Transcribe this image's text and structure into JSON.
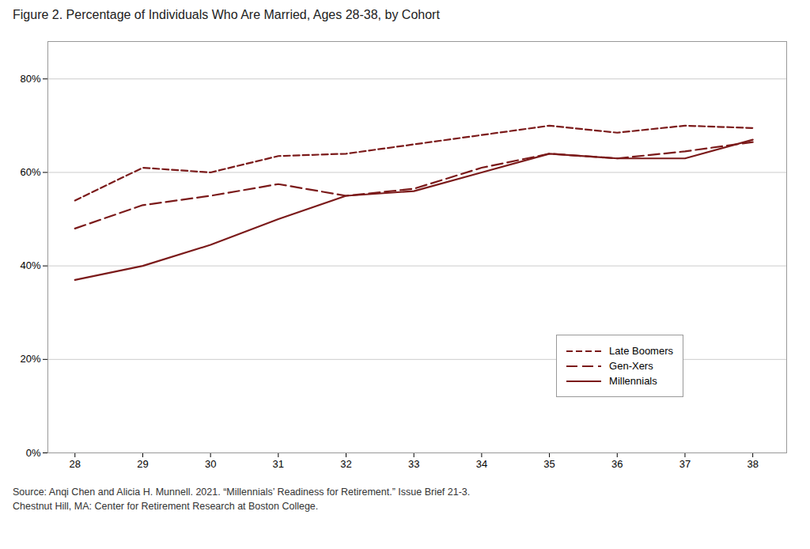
{
  "chart_data": {
    "type": "line",
    "title": "Figure 2. Percentage of Individuals Who Are Married, Ages 28-38, by Cohort",
    "caption": [
      "Source: Anqi Chen and Alicia H. Munnell. 2021. “Millennials’ Readiness for Retirement.” Issue Brief 21-3.",
      "Chestnut Hill, MA: Center for Retirement Research at Boston College."
    ],
    "x": [
      28,
      29,
      30,
      31,
      32,
      33,
      34,
      35,
      36,
      37,
      38
    ],
    "series": [
      {
        "name": "Late Boomers",
        "color": "#7B1A1A",
        "line_style": "dashed",
        "values": [
          0.54,
          0.61,
          0.6,
          0.635,
          0.64,
          0.66,
          0.68,
          0.7,
          0.685,
          0.7,
          0.695
        ]
      },
      {
        "name": "Gen-Xers",
        "color": "#7B1A1A",
        "line_style": "longdashed",
        "values": [
          0.48,
          0.53,
          0.55,
          0.575,
          0.55,
          0.565,
          0.61,
          0.64,
          0.63,
          0.645,
          0.665
        ]
      },
      {
        "name": "Millennials",
        "color": "#7B1A1A",
        "line_style": "solid",
        "values": [
          0.37,
          0.4,
          0.445,
          0.5,
          0.55,
          0.56,
          0.6,
          0.64,
          0.63,
          0.63,
          0.67
        ]
      }
    ],
    "xlim": [
      27.6,
      38.5
    ],
    "xticks": [
      28,
      29,
      30,
      31,
      32,
      33,
      34,
      35,
      36,
      37,
      38
    ],
    "ylim": [
      0.0,
      0.88
    ],
    "yticks": [
      {
        "value": 0.0,
        "label": "0%"
      },
      {
        "value": 0.2,
        "label": "20%"
      },
      {
        "value": 0.4,
        "label": "40%"
      },
      {
        "value": 0.6,
        "label": "60%"
      },
      {
        "value": 0.8,
        "label": "80%"
      }
    ],
    "grid": "y",
    "legend": "lower right"
  }
}
